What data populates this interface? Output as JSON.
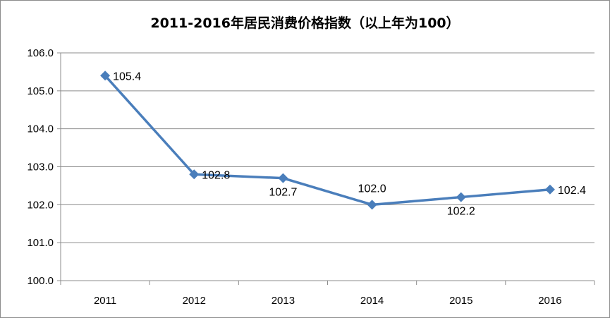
{
  "chart_data": {
    "type": "line",
    "title": "2011-2016年居民消费价格指数（以上年为100）",
    "categories": [
      "2011",
      "2012",
      "2013",
      "2014",
      "2015",
      "2016"
    ],
    "series": [
      {
        "values": [
          105.4,
          102.8,
          102.7,
          102.0,
          102.2,
          102.4
        ]
      }
    ],
    "data_labels": [
      "105.4",
      "102.8",
      "102.7",
      "102.0",
      "102.2",
      "102.4"
    ],
    "y_ticks": [
      "100.0",
      "101.0",
      "102.0",
      "103.0",
      "104.0",
      "105.0",
      "106.0"
    ],
    "ylim": [
      100,
      106
    ],
    "grid": true,
    "legend": "none",
    "line_color": "#4a7ebb",
    "grid_color": "#8c8c8c"
  }
}
